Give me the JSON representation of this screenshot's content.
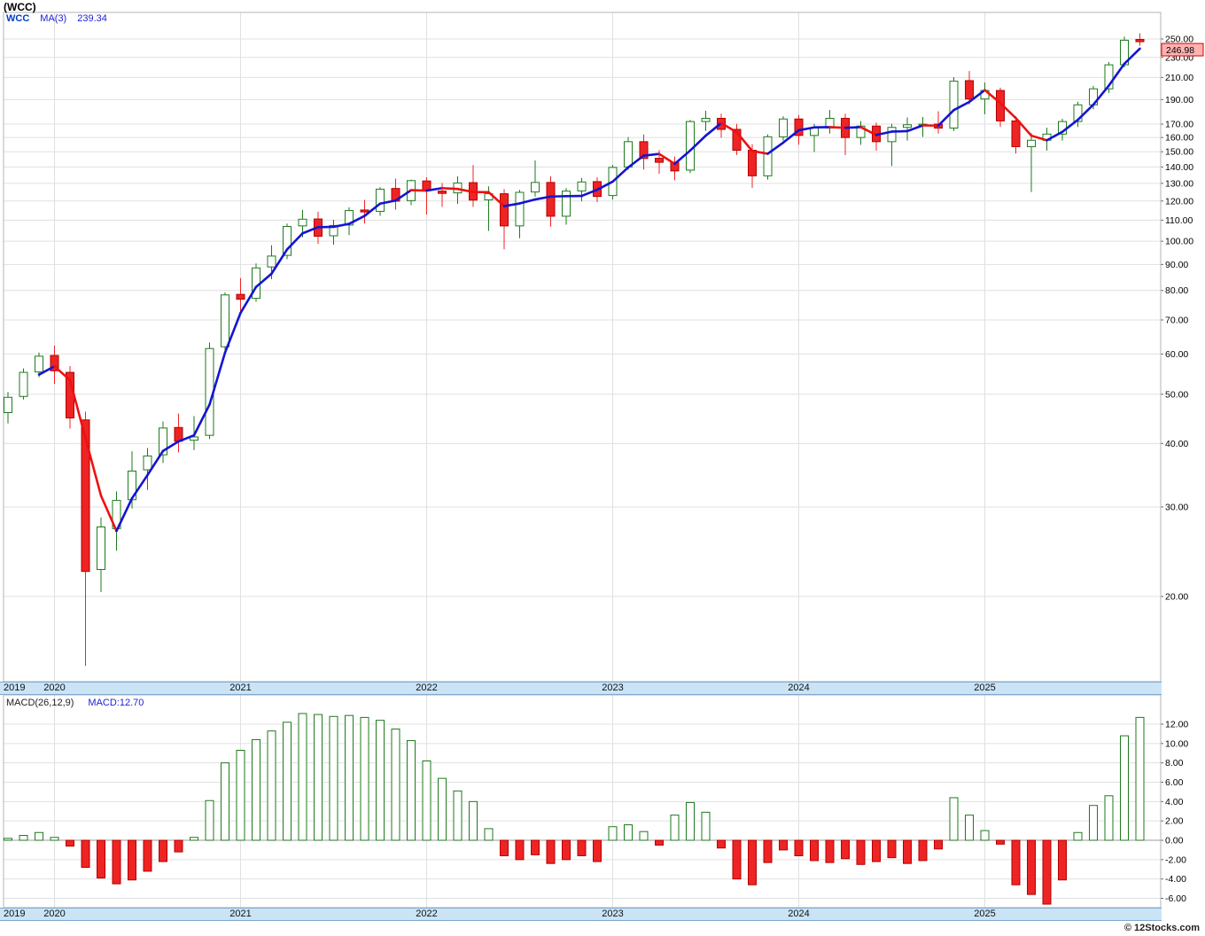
{
  "title": "(WCC)",
  "watermark": "© 12Stocks.com",
  "price_panel": {
    "legend": {
      "symbol": "WCC",
      "ma_label": "MA(3)",
      "ma_value": "239.34"
    },
    "last_price_label": "246.98"
  },
  "macd_panel": {
    "legend_label": "MACD(26,12,9)",
    "legend_value": "MACD:12.70"
  },
  "chart_data": {
    "type": "candlestick_with_macd_histogram",
    "title": "(WCC) monthly candlestick chart with MA(3) and MACD(26,12,9)",
    "symbol": "WCC",
    "ma_period": 3,
    "ma_last": 239.34,
    "last_close": 246.98,
    "macd_params": "26,12,9",
    "macd_last": 12.7,
    "x_axis_years": [
      "2019",
      "2020",
      "2021",
      "2022",
      "2023",
      "2024",
      "2025"
    ],
    "price_axis": {
      "scale": "log",
      "ylim": [
        13.5,
        260
      ],
      "ticks": [
        250,
        230,
        210,
        190,
        170,
        160,
        150,
        140,
        130,
        120,
        110,
        100,
        90,
        80,
        70,
        60,
        50,
        40,
        30,
        20
      ]
    },
    "macd_axis": {
      "ylim": [
        -7,
        15
      ],
      "ticks": [
        12,
        10,
        8,
        6,
        4,
        2,
        0,
        -2,
        -4,
        -6
      ]
    },
    "grid": true,
    "colors": {
      "up_outline": "#1d7a1d",
      "down_fill": "#ee2424",
      "down_outline": "#b40000",
      "ma_up": "#1414d2",
      "ma_down": "#ee1111",
      "grid": "#e0e0e0",
      "macd_pos_outline": "#1d7a1d",
      "macd_neg_fill": "#ee2424",
      "label_box_fill": "#ffb2b2",
      "label_box_border": "#d40000",
      "strip_bg": "#cae4f6"
    },
    "candles": [
      {
        "m": "2019-10",
        "o": 46.0,
        "h": 50.5,
        "l": 43.8,
        "c": 49.3
      },
      {
        "m": "2019-11",
        "o": 49.5,
        "h": 56.2,
        "l": 48.8,
        "c": 55.2
      },
      {
        "m": "2019-12",
        "o": 55.3,
        "h": 60.4,
        "l": 54.0,
        "c": 59.4
      },
      {
        "m": "2020-01",
        "o": 59.6,
        "h": 62.3,
        "l": 52.4,
        "c": 55.6
      },
      {
        "m": "2020-02",
        "o": 55.2,
        "h": 56.8,
        "l": 42.8,
        "c": 44.9
      },
      {
        "m": "2020-03",
        "o": 44.5,
        "h": 46.2,
        "l": 14.6,
        "c": 22.4
      },
      {
        "m": "2020-04",
        "o": 22.6,
        "h": 28.6,
        "l": 20.4,
        "c": 27.4
      },
      {
        "m": "2020-05",
        "o": 27.2,
        "h": 32.2,
        "l": 24.6,
        "c": 30.9
      },
      {
        "m": "2020-06",
        "o": 31.0,
        "h": 38.6,
        "l": 29.8,
        "c": 35.3
      },
      {
        "m": "2020-07",
        "o": 35.5,
        "h": 39.2,
        "l": 32.4,
        "c": 37.8
      },
      {
        "m": "2020-08",
        "o": 38.0,
        "h": 44.2,
        "l": 36.6,
        "c": 42.9
      },
      {
        "m": "2020-09",
        "o": 43.0,
        "h": 45.8,
        "l": 38.4,
        "c": 40.4
      },
      {
        "m": "2020-10",
        "o": 40.6,
        "h": 45.3,
        "l": 38.8,
        "c": 41.2
      },
      {
        "m": "2020-11",
        "o": 41.5,
        "h": 63.2,
        "l": 40.8,
        "c": 61.5
      },
      {
        "m": "2020-12",
        "o": 62.0,
        "h": 79.3,
        "l": 59.8,
        "c": 78.4
      },
      {
        "m": "2021-01",
        "o": 78.6,
        "h": 84.6,
        "l": 72.4,
        "c": 76.9
      },
      {
        "m": "2021-02",
        "o": 77.2,
        "h": 90.4,
        "l": 76.0,
        "c": 88.6
      },
      {
        "m": "2021-03",
        "o": 89.0,
        "h": 98.2,
        "l": 84.2,
        "c": 93.5
      },
      {
        "m": "2021-04",
        "o": 93.8,
        "h": 108.3,
        "l": 92.2,
        "c": 106.9
      },
      {
        "m": "2021-05",
        "o": 107.2,
        "h": 115.2,
        "l": 101.8,
        "c": 110.5
      },
      {
        "m": "2021-06",
        "o": 110.6,
        "h": 114.3,
        "l": 98.8,
        "c": 102.3
      },
      {
        "m": "2021-07",
        "o": 102.5,
        "h": 110.2,
        "l": 98.4,
        "c": 107.4
      },
      {
        "m": "2021-08",
        "o": 107.6,
        "h": 116.6,
        "l": 102.8,
        "c": 114.9
      },
      {
        "m": "2021-09",
        "o": 115.2,
        "h": 120.6,
        "l": 108.4,
        "c": 114.2
      },
      {
        "m": "2021-10",
        "o": 114.5,
        "h": 127.8,
        "l": 112.2,
        "c": 126.6
      },
      {
        "m": "2021-11",
        "o": 127.0,
        "h": 132.8,
        "l": 115.4,
        "c": 119.9
      },
      {
        "m": "2021-12",
        "o": 120.2,
        "h": 132.2,
        "l": 117.8,
        "c": 131.6
      },
      {
        "m": "2022-01",
        "o": 131.4,
        "h": 133.6,
        "l": 112.8,
        "c": 125.8
      },
      {
        "m": "2022-02",
        "o": 125.5,
        "h": 130.2,
        "l": 116.8,
        "c": 124.2
      },
      {
        "m": "2022-03",
        "o": 124.5,
        "h": 134.2,
        "l": 118.4,
        "c": 130.2
      },
      {
        "m": "2022-04",
        "o": 130.4,
        "h": 141.2,
        "l": 116.8,
        "c": 120.5
      },
      {
        "m": "2022-05",
        "o": 120.6,
        "h": 128.2,
        "l": 104.8,
        "c": 124.0
      },
      {
        "m": "2022-06",
        "o": 124.0,
        "h": 126.6,
        "l": 96.4,
        "c": 107.2
      },
      {
        "m": "2022-07",
        "o": 107.2,
        "h": 126.2,
        "l": 101.4,
        "c": 124.8
      },
      {
        "m": "2022-08",
        "o": 125.0,
        "h": 144.2,
        "l": 122.4,
        "c": 130.5
      },
      {
        "m": "2022-09",
        "o": 130.5,
        "h": 134.2,
        "l": 106.8,
        "c": 112.0
      },
      {
        "m": "2022-10",
        "o": 112.0,
        "h": 127.2,
        "l": 107.8,
        "c": 125.5
      },
      {
        "m": "2022-11",
        "o": 125.6,
        "h": 133.2,
        "l": 119.8,
        "c": 130.8
      },
      {
        "m": "2022-12",
        "o": 131.0,
        "h": 133.6,
        "l": 119.4,
        "c": 122.5
      },
      {
        "m": "2023-01",
        "o": 123.0,
        "h": 141.2,
        "l": 120.8,
        "c": 139.7
      },
      {
        "m": "2023-02",
        "o": 140.0,
        "h": 160.3,
        "l": 138.2,
        "c": 157.0
      },
      {
        "m": "2023-03",
        "o": 157.0,
        "h": 162.2,
        "l": 138.4,
        "c": 145.5
      },
      {
        "m": "2023-04",
        "o": 145.6,
        "h": 151.2,
        "l": 135.8,
        "c": 143.0
      },
      {
        "m": "2023-05",
        "o": 143.0,
        "h": 146.8,
        "l": 131.8,
        "c": 137.5
      },
      {
        "m": "2023-06",
        "o": 138.0,
        "h": 173.2,
        "l": 136.2,
        "c": 172.0
      },
      {
        "m": "2023-07",
        "o": 172.0,
        "h": 180.6,
        "l": 164.8,
        "c": 174.5
      },
      {
        "m": "2023-08",
        "o": 174.5,
        "h": 178.2,
        "l": 159.8,
        "c": 166.0
      },
      {
        "m": "2023-09",
        "o": 166.0,
        "h": 170.2,
        "l": 147.8,
        "c": 151.0
      },
      {
        "m": "2023-10",
        "o": 151.0,
        "h": 155.2,
        "l": 127.4,
        "c": 134.5
      },
      {
        "m": "2023-11",
        "o": 134.5,
        "h": 162.3,
        "l": 132.2,
        "c": 160.5
      },
      {
        "m": "2023-12",
        "o": 160.5,
        "h": 176.2,
        "l": 157.8,
        "c": 174.0
      },
      {
        "m": "2024-01",
        "o": 174.0,
        "h": 177.2,
        "l": 154.8,
        "c": 161.5
      },
      {
        "m": "2024-02",
        "o": 161.5,
        "h": 170.3,
        "l": 149.8,
        "c": 167.0
      },
      {
        "m": "2024-03",
        "o": 167.0,
        "h": 181.2,
        "l": 162.8,
        "c": 174.5
      },
      {
        "m": "2024-04",
        "o": 174.5,
        "h": 178.2,
        "l": 147.8,
        "c": 160.0
      },
      {
        "m": "2024-05",
        "o": 160.0,
        "h": 172.3,
        "l": 154.8,
        "c": 168.5
      },
      {
        "m": "2024-06",
        "o": 168.5,
        "h": 171.2,
        "l": 150.8,
        "c": 157.0
      },
      {
        "m": "2024-07",
        "o": 157.0,
        "h": 170.3,
        "l": 140.6,
        "c": 167.5
      },
      {
        "m": "2024-08",
        "o": 167.5,
        "h": 175.2,
        "l": 157.8,
        "c": 169.5
      },
      {
        "m": "2024-09",
        "o": 169.5,
        "h": 175.6,
        "l": 160.4,
        "c": 170.0
      },
      {
        "m": "2024-10",
        "o": 170.0,
        "h": 180.2,
        "l": 162.8,
        "c": 167.0
      },
      {
        "m": "2024-11",
        "o": 167.0,
        "h": 210.3,
        "l": 164.8,
        "c": 206.5
      },
      {
        "m": "2024-12",
        "o": 207.0,
        "h": 216.2,
        "l": 185.8,
        "c": 190.5
      },
      {
        "m": "2025-01",
        "o": 190.5,
        "h": 205.2,
        "l": 177.8,
        "c": 198.0
      },
      {
        "m": "2025-02",
        "o": 198.0,
        "h": 200.6,
        "l": 167.8,
        "c": 172.5
      },
      {
        "m": "2025-03",
        "o": 172.5,
        "h": 176.2,
        "l": 148.8,
        "c": 153.5
      },
      {
        "m": "2025-04",
        "o": 153.5,
        "h": 163.2,
        "l": 125.0,
        "c": 158.0
      },
      {
        "m": "2025-05",
        "o": 158.0,
        "h": 167.2,
        "l": 150.8,
        "c": 162.5
      },
      {
        "m": "2025-06",
        "o": 162.5,
        "h": 174.2,
        "l": 157.8,
        "c": 172.0
      },
      {
        "m": "2025-07",
        "o": 172.0,
        "h": 188.2,
        "l": 167.8,
        "c": 185.5
      },
      {
        "m": "2025-08",
        "o": 185.5,
        "h": 202.2,
        "l": 181.8,
        "c": 199.5
      },
      {
        "m": "2025-09",
        "o": 199.5,
        "h": 225.2,
        "l": 195.8,
        "c": 222.4
      },
      {
        "m": "2025-10",
        "o": 222.5,
        "h": 252.6,
        "l": 219.8,
        "c": 248.6
      },
      {
        "m": "2025-11",
        "o": 249.5,
        "h": 256.5,
        "l": 242.4,
        "c": 246.98
      }
    ],
    "macd_histogram": [
      0.2,
      0.5,
      0.8,
      0.3,
      -0.6,
      -2.8,
      -3.9,
      -4.5,
      -4.1,
      -3.2,
      -2.2,
      -1.2,
      0.3,
      4.1,
      8.0,
      9.3,
      10.4,
      11.3,
      12.2,
      13.1,
      13.0,
      12.8,
      12.9,
      12.7,
      12.4,
      11.5,
      10.3,
      8.2,
      6.4,
      5.1,
      4.0,
      1.2,
      -1.6,
      -2.0,
      -1.5,
      -2.4,
      -2.0,
      -1.6,
      -2.2,
      1.4,
      1.6,
      0.9,
      -0.5,
      2.6,
      3.9,
      2.9,
      -0.8,
      -4.0,
      -4.6,
      -2.3,
      -1.0,
      -1.6,
      -2.1,
      -2.3,
      -1.9,
      -2.5,
      -2.2,
      -1.8,
      -2.4,
      -2.1,
      -0.9,
      4.4,
      2.6,
      1.0,
      -0.4,
      -4.6,
      -5.6,
      -6.6,
      -4.1,
      0.8,
      3.6,
      4.6,
      10.8,
      12.7
    ]
  }
}
